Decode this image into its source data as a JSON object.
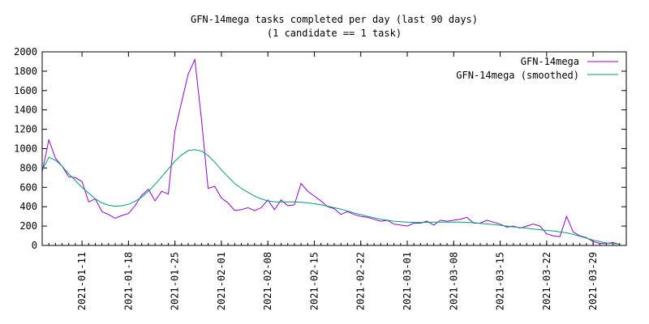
{
  "chart_data": {
    "type": "line",
    "title": "GFN-14mega tasks completed per day (last 90 days)",
    "subtitle": "(1 candidate == 1 task)",
    "xlabel": "",
    "ylabel": "",
    "ylim": [
      0,
      2000
    ],
    "yticks": [
      0,
      200,
      400,
      600,
      800,
      1000,
      1200,
      1400,
      1600,
      1800,
      2000
    ],
    "xticks": [
      "2021-01-11",
      "2021-01-18",
      "2021-01-25",
      "2021-02-01",
      "2021-02-08",
      "2021-02-15",
      "2021-02-22",
      "2021-03-01",
      "2021-03-08",
      "2021-03-15",
      "2021-03-22",
      "2021-03-29"
    ],
    "x_start": "2021-01-05",
    "x_end": "2021-04-03",
    "grid": false,
    "legend_position": "top-right",
    "series": [
      {
        "name": "GFN-14mega",
        "color": "#9400d3",
        "dates": [
          "2021-01-05",
          "2021-01-06",
          "2021-01-07",
          "2021-01-08",
          "2021-01-09",
          "2021-01-10",
          "2021-01-11",
          "2021-01-12",
          "2021-01-13",
          "2021-01-14",
          "2021-01-15",
          "2021-01-16",
          "2021-01-17",
          "2021-01-18",
          "2021-01-19",
          "2021-01-20",
          "2021-01-21",
          "2021-01-22",
          "2021-01-23",
          "2021-01-24",
          "2021-01-25",
          "2021-01-26",
          "2021-01-27",
          "2021-01-28",
          "2021-01-29",
          "2021-01-30",
          "2021-01-31",
          "2021-02-01",
          "2021-02-02",
          "2021-02-03",
          "2021-02-04",
          "2021-02-05",
          "2021-02-06",
          "2021-02-07",
          "2021-02-08",
          "2021-02-09",
          "2021-02-10",
          "2021-02-11",
          "2021-02-12",
          "2021-02-13",
          "2021-02-14",
          "2021-02-15",
          "2021-02-16",
          "2021-02-17",
          "2021-02-18",
          "2021-02-19",
          "2021-02-20",
          "2021-02-21",
          "2021-02-22",
          "2021-02-23",
          "2021-02-24",
          "2021-02-25",
          "2021-02-26",
          "2021-02-27",
          "2021-02-28",
          "2021-03-01",
          "2021-03-02",
          "2021-03-03",
          "2021-03-04",
          "2021-03-05",
          "2021-03-06",
          "2021-03-07",
          "2021-03-08",
          "2021-03-09",
          "2021-03-10",
          "2021-03-11",
          "2021-03-12",
          "2021-03-13",
          "2021-03-14",
          "2021-03-15",
          "2021-03-16",
          "2021-03-17",
          "2021-03-18",
          "2021-03-19",
          "2021-03-20",
          "2021-03-21",
          "2021-03-22",
          "2021-03-23",
          "2021-03-24",
          "2021-03-25",
          "2021-03-26",
          "2021-03-27",
          "2021-03-28",
          "2021-03-29",
          "2021-03-30",
          "2021-03-31",
          "2021-04-01",
          "2021-04-02"
        ],
        "values": [
          760,
          1090,
          900,
          820,
          710,
          700,
          660,
          450,
          480,
          350,
          320,
          280,
          310,
          330,
          410,
          520,
          580,
          460,
          560,
          530,
          1180,
          1480,
          1770,
          1920,
          1300,
          590,
          610,
          490,
          440,
          360,
          370,
          390,
          360,
          390,
          470,
          370,
          470,
          410,
          420,
          640,
          560,
          510,
          460,
          400,
          380,
          320,
          350,
          320,
          300,
          290,
          270,
          250,
          260,
          220,
          210,
          200,
          230,
          230,
          250,
          210,
          260,
          250,
          260,
          270,
          290,
          230,
          230,
          260,
          240,
          220,
          190,
          200,
          180,
          200,
          220,
          200,
          120,
          100,
          90,
          300,
          140,
          100,
          80,
          40,
          20,
          20,
          30,
          10
        ]
      },
      {
        "name": "GFN-14mega (smoothed)",
        "color": "#009e73",
        "dates": [
          "2021-01-05",
          "2021-01-06",
          "2021-01-07",
          "2021-01-08",
          "2021-01-09",
          "2021-01-10",
          "2021-01-11",
          "2021-01-12",
          "2021-01-13",
          "2021-01-14",
          "2021-01-15",
          "2021-01-16",
          "2021-01-17",
          "2021-01-18",
          "2021-01-19",
          "2021-01-20",
          "2021-01-21",
          "2021-01-22",
          "2021-01-23",
          "2021-01-24",
          "2021-01-25",
          "2021-01-26",
          "2021-01-27",
          "2021-01-28",
          "2021-01-29",
          "2021-01-30",
          "2021-01-31",
          "2021-02-01",
          "2021-02-02",
          "2021-02-03",
          "2021-02-04",
          "2021-02-05",
          "2021-02-06",
          "2021-02-07",
          "2021-02-08",
          "2021-02-09",
          "2021-02-10",
          "2021-02-11",
          "2021-02-12",
          "2021-02-13",
          "2021-02-14",
          "2021-02-15",
          "2021-02-16",
          "2021-02-17",
          "2021-02-18",
          "2021-02-19",
          "2021-02-20",
          "2021-02-21",
          "2021-02-22",
          "2021-02-23",
          "2021-02-24",
          "2021-02-25",
          "2021-02-26",
          "2021-02-27",
          "2021-02-28",
          "2021-03-01",
          "2021-03-02",
          "2021-03-03",
          "2021-03-04",
          "2021-03-05",
          "2021-03-06",
          "2021-03-07",
          "2021-03-08",
          "2021-03-09",
          "2021-03-10",
          "2021-03-11",
          "2021-03-12",
          "2021-03-13",
          "2021-03-14",
          "2021-03-15",
          "2021-03-16",
          "2021-03-17",
          "2021-03-18",
          "2021-03-19",
          "2021-03-20",
          "2021-03-21",
          "2021-03-22",
          "2021-03-23",
          "2021-03-24",
          "2021-03-25",
          "2021-03-26",
          "2021-03-27",
          "2021-03-28",
          "2021-03-29",
          "2021-03-30",
          "2021-03-31",
          "2021-04-01",
          "2021-04-02"
        ],
        "values": [
          780,
          910,
          880,
          820,
          740,
          670,
          600,
          540,
          480,
          440,
          415,
          405,
          410,
          425,
          455,
          500,
          560,
          630,
          710,
          790,
          870,
          935,
          980,
          990,
          975,
          930,
          860,
          780,
          710,
          640,
          590,
          550,
          510,
          480,
          460,
          450,
          450,
          450,
          450,
          445,
          440,
          430,
          420,
          405,
          390,
          375,
          355,
          335,
          320,
          300,
          285,
          270,
          260,
          250,
          245,
          240,
          238,
          238,
          238,
          240,
          240,
          240,
          240,
          240,
          238,
          235,
          228,
          222,
          215,
          208,
          200,
          192,
          185,
          178,
          170,
          162,
          155,
          150,
          140,
          130,
          115,
          95,
          75,
          55,
          40,
          25,
          20,
          15
        ]
      }
    ]
  }
}
